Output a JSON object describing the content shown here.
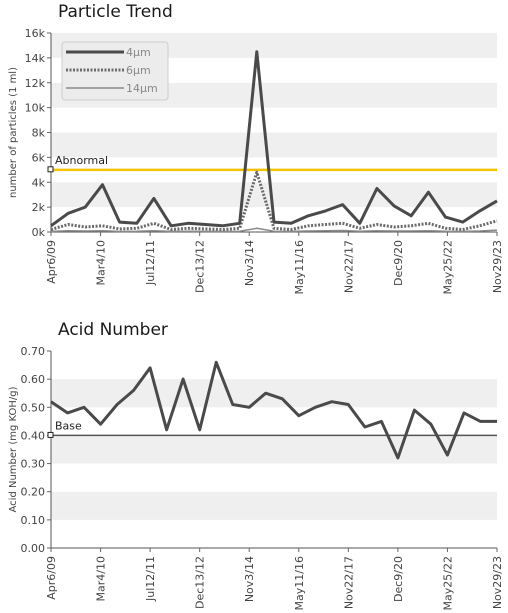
{
  "chart_data": [
    {
      "type": "line",
      "title": "Particle Trend",
      "xlabel": "",
      "ylabel": "number of particles (1 ml)",
      "ylim": [
        0,
        16000
      ],
      "y_ticks": [
        "0k",
        "2k",
        "4k",
        "6k",
        "8k",
        "10k",
        "12k",
        "14k",
        "16k"
      ],
      "x_tick_labels": [
        "Apr6/09",
        "Mar4/10",
        "Jul12/11",
        "Dec13/12",
        "Nov3/14",
        "May11/16",
        "Nov22/17",
        "Dec9/20",
        "May25/22",
        "Nov29/23"
      ],
      "grid": true,
      "legend_position": "top-left",
      "reference_line": {
        "label": "Abnormal",
        "value": 5000,
        "color": "#f2c200"
      },
      "series": [
        {
          "name": "4μm",
          "color": "#4a4a4a",
          "style": "solid",
          "values": [
            500,
            1500,
            2000,
            3800,
            800,
            700,
            2700,
            500,
            700,
            600,
            500,
            700,
            14500,
            800,
            700,
            1300,
            1700,
            2200,
            700,
            3500,
            2100,
            1300,
            3200,
            1200,
            800,
            1700,
            2500
          ]
        },
        {
          "name": "6μm",
          "color": "#6a6a6a",
          "style": "dotted",
          "values": [
            200,
            600,
            400,
            500,
            250,
            300,
            700,
            200,
            300,
            250,
            200,
            300,
            4800,
            300,
            200,
            500,
            600,
            700,
            300,
            600,
            400,
            500,
            700,
            300,
            200,
            500,
            900
          ]
        },
        {
          "name": "14μm",
          "color": "#8a8a8a",
          "style": "thin",
          "values": [
            50,
            100,
            80,
            100,
            50,
            60,
            100,
            50,
            60,
            50,
            50,
            60,
            300,
            60,
            50,
            80,
            100,
            120,
            60,
            100,
            80,
            80,
            100,
            60,
            50,
            80,
            150
          ]
        }
      ]
    },
    {
      "type": "line",
      "title": "Acid Number",
      "xlabel": "",
      "ylabel": "Acid Number (mg KOH/g)",
      "ylim": [
        0,
        0.7
      ],
      "y_ticks": [
        "0.00",
        "0.10",
        "0.20",
        "0.30",
        "0.40",
        "0.50",
        "0.60",
        "0.70"
      ],
      "x_tick_labels": [
        "Apr6/09",
        "Mar4/10",
        "Jul12/11",
        "Dec13/12",
        "Nov3/14",
        "May11/16",
        "Nov22/17",
        "Dec9/20",
        "May25/22",
        "Nov29/23"
      ],
      "grid": true,
      "reference_line": {
        "label": "Base",
        "value": 0.4,
        "color": "#555555"
      },
      "series": [
        {
          "name": "",
          "color": "#4a4a4a",
          "style": "solid",
          "values": [
            0.52,
            0.48,
            0.5,
            0.44,
            0.51,
            0.56,
            0.64,
            0.42,
            0.6,
            0.42,
            0.66,
            0.51,
            0.5,
            0.55,
            0.53,
            0.47,
            0.5,
            0.52,
            0.51,
            0.43,
            0.45,
            0.32,
            0.49,
            0.44,
            0.33,
            0.48,
            0.45,
            0.45
          ]
        }
      ]
    }
  ]
}
